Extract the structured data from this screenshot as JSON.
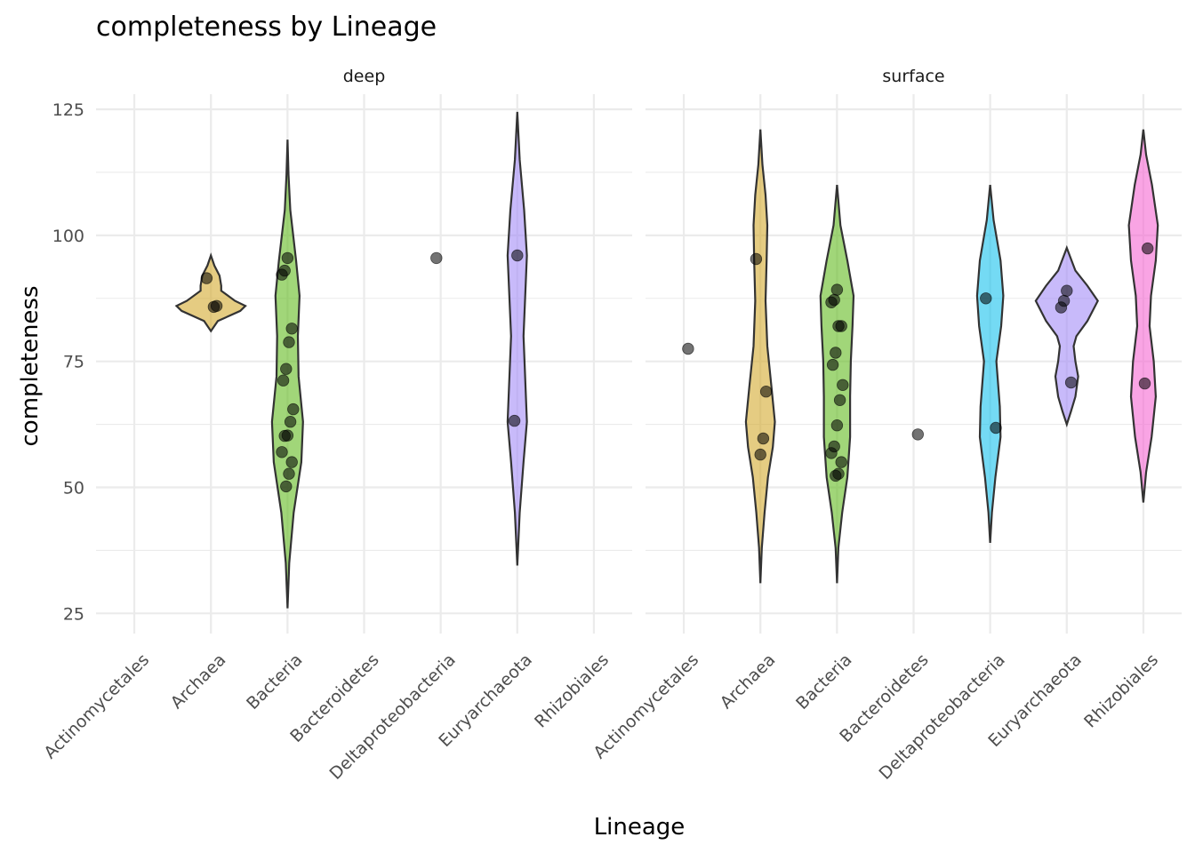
{
  "chart_data": {
    "type": "violin",
    "title": "completeness by Lineage",
    "xlabel": "Lineage",
    "ylabel": "completeness",
    "ylim": [
      21,
      128
    ],
    "yticks": [
      25,
      50,
      75,
      100,
      125
    ],
    "categories": [
      "Actinomycetales",
      "Archaea",
      "Bacteria",
      "Bacteroidetes",
      "Deltaproteobacteria",
      "Euryarchaeota",
      "Rhizobiales"
    ],
    "colors": {
      "Archaea": "#D4AA2F",
      "Bacteria": "#62BB1F",
      "Deltaproteobacteria": "#18C1EC",
      "Euryarchaeota": "#A48CF7",
      "Rhizobiales": "#F567D2"
    },
    "grid": true,
    "legend": "none",
    "panels": [
      {
        "name": "deep",
        "violins": [
          {
            "category": "Archaea",
            "profile": [
              [
                81,
                0
              ],
              [
                83,
                0.2
              ],
              [
                85,
                0.85
              ],
              [
                86,
                1.0
              ],
              [
                87,
                0.7
              ],
              [
                89,
                0.3
              ],
              [
                90,
                0.3
              ],
              [
                92,
                0.25
              ],
              [
                94,
                0.1
              ],
              [
                96,
                0
              ]
            ]
          },
          {
            "category": "Bacteria",
            "profile": [
              [
                26,
                0
              ],
              [
                35,
                0.05
              ],
              [
                45,
                0.18
              ],
              [
                55,
                0.4
              ],
              [
                63,
                0.45
              ],
              [
                72,
                0.32
              ],
              [
                80,
                0.3
              ],
              [
                88,
                0.35
              ],
              [
                95,
                0.25
              ],
              [
                105,
                0.08
              ],
              [
                112,
                0.03
              ],
              [
                119,
                0
              ]
            ]
          },
          {
            "category": "Euryarchaeota",
            "profile": [
              [
                34.5,
                0
              ],
              [
                45,
                0.07
              ],
              [
                55,
                0.18
              ],
              [
                63,
                0.28
              ],
              [
                80,
                0.18
              ],
              [
                96,
                0.28
              ],
              [
                105,
                0.2
              ],
              [
                115,
                0.07
              ],
              [
                124.5,
                0
              ]
            ]
          }
        ],
        "points": [
          {
            "category": "Archaea",
            "y": 91.5
          },
          {
            "category": "Archaea",
            "y": 86.0
          },
          {
            "category": "Archaea",
            "y": 85.8
          },
          {
            "category": "Bacteria",
            "y": 95.5
          },
          {
            "category": "Bacteria",
            "y": 93.0
          },
          {
            "category": "Bacteria",
            "y": 92.2
          },
          {
            "category": "Bacteria",
            "y": 81.5
          },
          {
            "category": "Bacteria",
            "y": 78.8
          },
          {
            "category": "Bacteria",
            "y": 73.5
          },
          {
            "category": "Bacteria",
            "y": 71.2
          },
          {
            "category": "Bacteria",
            "y": 65.5
          },
          {
            "category": "Bacteria",
            "y": 63.0
          },
          {
            "category": "Bacteria",
            "y": 60.3
          },
          {
            "category": "Bacteria",
            "y": 60.2
          },
          {
            "category": "Bacteria",
            "y": 57.0
          },
          {
            "category": "Bacteria",
            "y": 55.0
          },
          {
            "category": "Bacteria",
            "y": 52.7
          },
          {
            "category": "Bacteria",
            "y": 50.2
          },
          {
            "category": "Deltaproteobacteria",
            "y": 95.5
          },
          {
            "category": "Euryarchaeota",
            "y": 96.0
          },
          {
            "category": "Euryarchaeota",
            "y": 63.2
          }
        ]
      },
      {
        "name": "surface",
        "violins": [
          {
            "category": "Archaea",
            "profile": [
              [
                31,
                0
              ],
              [
                38,
                0.04
              ],
              [
                45,
                0.12
              ],
              [
                52,
                0.22
              ],
              [
                58,
                0.36
              ],
              [
                63,
                0.42
              ],
              [
                70,
                0.32
              ],
              [
                78,
                0.2
              ],
              [
                87,
                0.15
              ],
              [
                95,
                0.18
              ],
              [
                102,
                0.2
              ],
              [
                108,
                0.15
              ],
              [
                114,
                0.06
              ],
              [
                121,
                0
              ]
            ]
          },
          {
            "category": "Bacteria",
            "profile": [
              [
                31,
                0
              ],
              [
                38,
                0.04
              ],
              [
                45,
                0.15
              ],
              [
                52,
                0.3
              ],
              [
                60,
                0.38
              ],
              [
                68,
                0.38
              ],
              [
                75,
                0.4
              ],
              [
                82,
                0.45
              ],
              [
                88,
                0.48
              ],
              [
                95,
                0.3
              ],
              [
                102,
                0.1
              ],
              [
                110,
                0
              ]
            ]
          },
          {
            "category": "Deltaproteobacteria",
            "profile": [
              [
                39,
                0
              ],
              [
                45,
                0.05
              ],
              [
                52,
                0.15
              ],
              [
                60,
                0.3
              ],
              [
                66,
                0.28
              ],
              [
                75,
                0.18
              ],
              [
                82,
                0.32
              ],
              [
                88,
                0.38
              ],
              [
                95,
                0.3
              ],
              [
                103,
                0.1
              ],
              [
                110,
                0
              ]
            ]
          },
          {
            "category": "Euryarchaeota",
            "profile": [
              [
                62.5,
                0
              ],
              [
                65,
                0.12
              ],
              [
                68,
                0.25
              ],
              [
                72,
                0.33
              ],
              [
                75,
                0.25
              ],
              [
                78,
                0.2
              ],
              [
                80,
                0.28
              ],
              [
                83,
                0.6
              ],
              [
                87,
                0.9
              ],
              [
                90,
                0.6
              ],
              [
                93,
                0.25
              ],
              [
                97.5,
                0
              ]
            ]
          },
          {
            "category": "Rhizobiales",
            "profile": [
              [
                47,
                0
              ],
              [
                53,
                0.08
              ],
              [
                60,
                0.24
              ],
              [
                68,
                0.36
              ],
              [
                75,
                0.3
              ],
              [
                82,
                0.18
              ],
              [
                88,
                0.22
              ],
              [
                95,
                0.36
              ],
              [
                102,
                0.42
              ],
              [
                110,
                0.25
              ],
              [
                116,
                0.08
              ],
              [
                121,
                0
              ]
            ]
          }
        ],
        "points": [
          {
            "category": "Actinomycetales",
            "y": 77.5
          },
          {
            "category": "Archaea",
            "y": 95.3
          },
          {
            "category": "Archaea",
            "y": 69.0
          },
          {
            "category": "Archaea",
            "y": 59.7
          },
          {
            "category": "Archaea",
            "y": 56.5
          },
          {
            "category": "Bacteria",
            "y": 89.2
          },
          {
            "category": "Bacteria",
            "y": 87.2
          },
          {
            "category": "Bacteria",
            "y": 86.7
          },
          {
            "category": "Bacteria",
            "y": 82.0
          },
          {
            "category": "Bacteria",
            "y": 82.0
          },
          {
            "category": "Bacteria",
            "y": 76.7
          },
          {
            "category": "Bacteria",
            "y": 74.3
          },
          {
            "category": "Bacteria",
            "y": 70.3
          },
          {
            "category": "Bacteria",
            "y": 67.3
          },
          {
            "category": "Bacteria",
            "y": 62.3
          },
          {
            "category": "Bacteria",
            "y": 58.1
          },
          {
            "category": "Bacteria",
            "y": 56.8
          },
          {
            "category": "Bacteria",
            "y": 55.0
          },
          {
            "category": "Bacteria",
            "y": 52.7
          },
          {
            "category": "Bacteria",
            "y": 52.3
          },
          {
            "category": "Bacteroidetes",
            "y": 60.5
          },
          {
            "category": "Deltaproteobacteria",
            "y": 87.5
          },
          {
            "category": "Deltaproteobacteria",
            "y": 61.8
          },
          {
            "category": "Euryarchaeota",
            "y": 89.0
          },
          {
            "category": "Euryarchaeota",
            "y": 87.0
          },
          {
            "category": "Euryarchaeota",
            "y": 85.7
          },
          {
            "category": "Euryarchaeota",
            "y": 70.8
          },
          {
            "category": "Rhizobiales",
            "y": 97.4
          },
          {
            "category": "Rhizobiales",
            "y": 70.6
          }
        ]
      }
    ]
  }
}
